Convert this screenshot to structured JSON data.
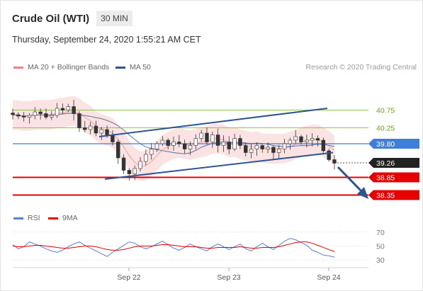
{
  "header": {
    "instrument": "Crude Oil (WTI)",
    "timeframe": "30 MIN",
    "timestamp": "Thursday, September 24, 2020 1:55:21 AM CET"
  },
  "legend": {
    "bollinger_label": "MA 20 + Bollinger Bands",
    "ma50_label": "MA 50",
    "credit": "Research © 2020 Trading Central",
    "rsi_label": "RSI",
    "rsi_ma_label": "9MA"
  },
  "colors": {
    "bollinger": "#f08080",
    "ma50": "#2d5591",
    "green_level": "#8cc63f",
    "blue_level": "#3d7fd9",
    "red_level": "#e60000",
    "candle": "#333333",
    "rsi": "#5a7fd6",
    "rsi_ma": "#e60000",
    "arrow": "#2d5591"
  },
  "chart_data": [
    {
      "type": "candlestick",
      "x": [
        "Sep 22",
        "Sep 23",
        "Sep 24"
      ],
      "ylim": [
        38.1,
        41.3
      ],
      "levels": [
        {
          "label": "40.75",
          "value": 40.75,
          "style": "green"
        },
        {
          "label": "40.25",
          "value": 40.25,
          "style": "green"
        },
        {
          "label": "39.80",
          "value": 39.8,
          "style": "blue-box"
        },
        {
          "label": "39.26",
          "value": 39.26,
          "style": "current-price"
        },
        {
          "label": "38.85",
          "value": 38.85,
          "style": "red-box"
        },
        {
          "label": "38.35",
          "value": 38.35,
          "style": "red-box"
        }
      ],
      "close_series": [
        40.62,
        40.58,
        40.55,
        40.6,
        40.7,
        40.65,
        40.55,
        40.6,
        40.8,
        40.75,
        40.85,
        40.65,
        40.25,
        40.2,
        40.3,
        40.1,
        40.2,
        40.05,
        39.85,
        39.4,
        39.05,
        38.95,
        39.1,
        39.3,
        39.5,
        39.65,
        39.8,
        39.9,
        39.75,
        39.85,
        39.8,
        39.65,
        39.75,
        39.95,
        40.1,
        39.85,
        40.05,
        39.75,
        39.85,
        39.65,
        39.95,
        39.75,
        39.55,
        39.65,
        39.75,
        39.65,
        39.7,
        39.55,
        39.65,
        39.8,
        39.9,
        40.0,
        39.85,
        39.9,
        39.95,
        39.9,
        39.6,
        39.35,
        39.25
      ],
      "upper_channel": {
        "from": 40.0,
        "to": 40.8
      },
      "lower_channel": {
        "from": 38.8,
        "to": 39.55
      },
      "projection": "down"
    },
    {
      "type": "line",
      "ylim": [
        20,
        80
      ],
      "y_ticks": [
        "70",
        "50",
        "30"
      ],
      "series": [
        {
          "name": "RSI",
          "values": [
            52,
            46,
            49,
            56,
            53,
            50,
            46,
            43,
            41,
            44,
            49,
            53,
            56,
            51,
            47,
            43,
            39,
            35,
            41,
            46,
            51,
            56,
            54,
            49,
            46,
            49,
            53,
            57,
            52,
            47,
            44,
            48,
            53,
            49,
            46,
            43,
            49,
            53,
            49,
            45,
            49,
            53,
            46,
            43,
            49,
            54,
            49,
            45,
            51,
            57,
            61,
            59,
            55,
            51,
            44,
            41,
            37,
            36,
            34
          ]
        },
        {
          "name": "9MA",
          "values": [
            50,
            49,
            49,
            50,
            51,
            51,
            50,
            49,
            48,
            47,
            47,
            48,
            49,
            50,
            50,
            49,
            47,
            45,
            44,
            44,
            45,
            47,
            49,
            50,
            50,
            50,
            51,
            52,
            52,
            51,
            50,
            49,
            49,
            49,
            48,
            47,
            47,
            48,
            48,
            48,
            48,
            49,
            48,
            47,
            47,
            48,
            48,
            48,
            49,
            51,
            53,
            55,
            56,
            56,
            54,
            51,
            48,
            45,
            42
          ]
        }
      ]
    }
  ]
}
